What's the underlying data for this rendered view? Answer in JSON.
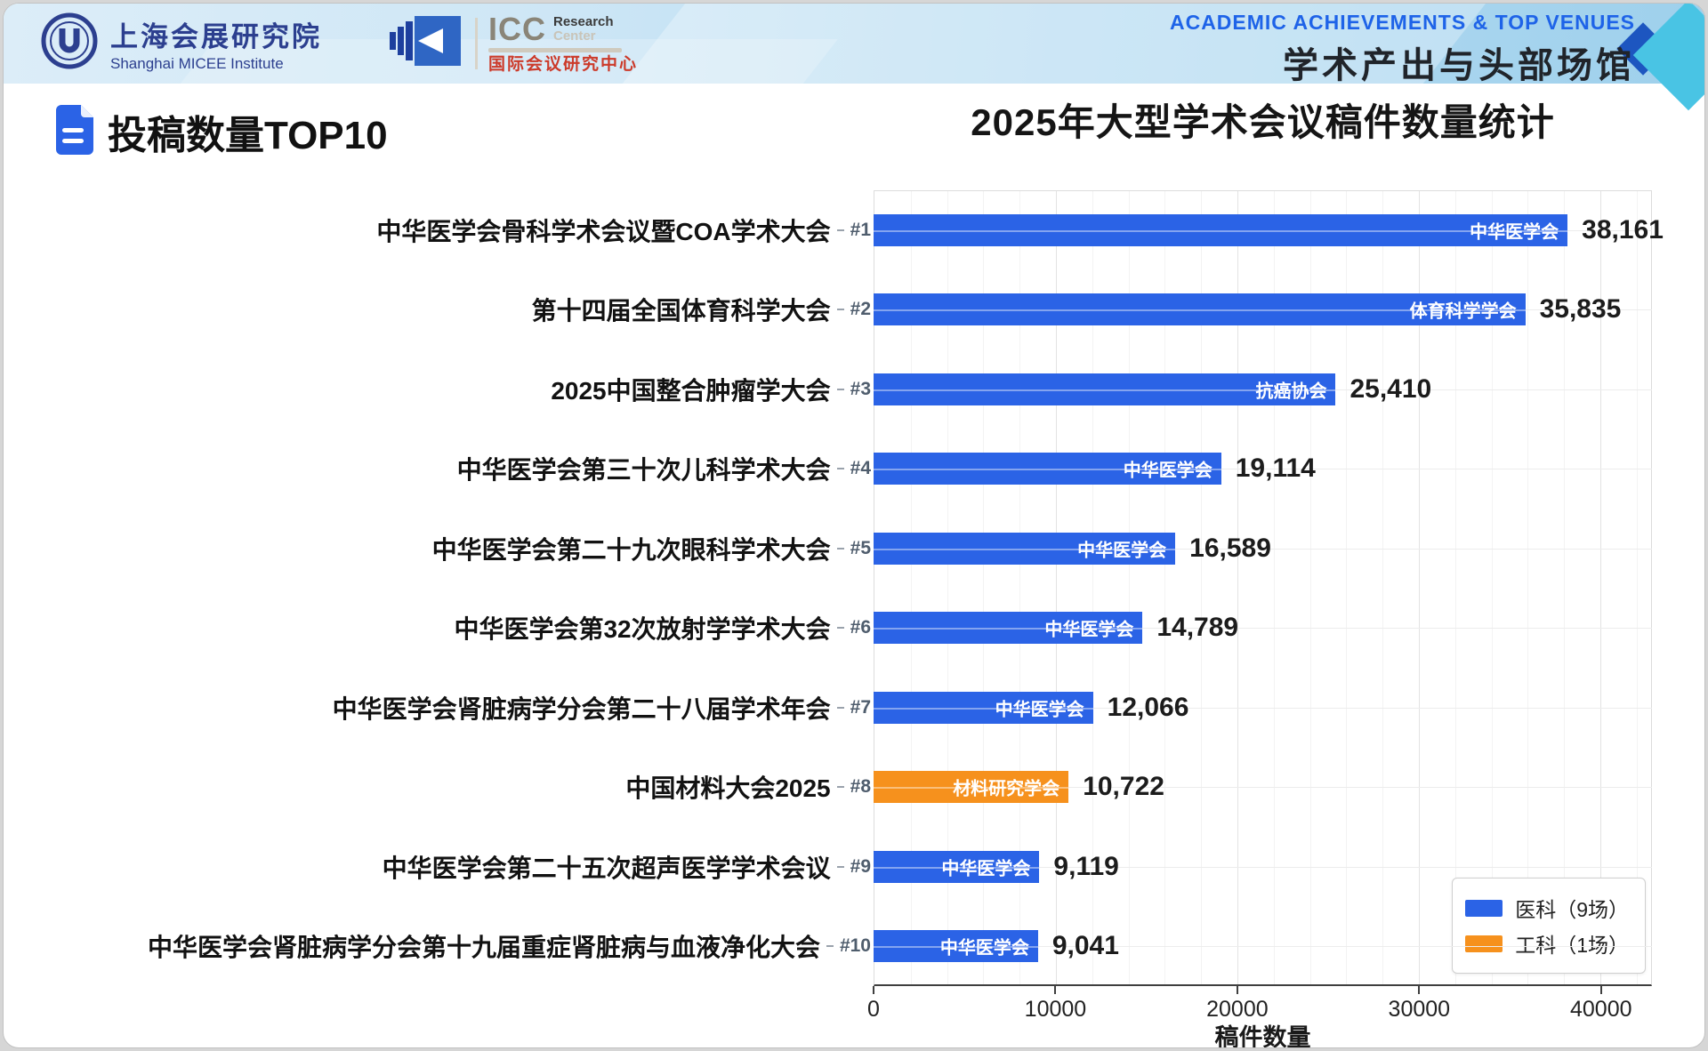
{
  "header": {
    "micee_cn": "上海会展研究院",
    "micee_en": "Shanghai MICEE Institute",
    "icc_name": "ICC",
    "icc_sub1": "Research",
    "icc_sub2": "Center",
    "icc_cn": "国际会议研究中心",
    "right_en": "ACADEMIC ACHIEVEMENTS & TOP VENUES",
    "right_cn": "学术产出与头部场馆"
  },
  "section": {
    "title": "投稿数量TOP10"
  },
  "chart_data": {
    "type": "bar",
    "orientation": "horizontal",
    "title": "2025年大型学术会议稿件数量统计",
    "xlabel": "稿件数量",
    "xlim": [
      0,
      42800
    ],
    "grid": true,
    "x_ticks": [
      {
        "value": 0,
        "label": "0"
      },
      {
        "value": 10000,
        "label": "10000"
      },
      {
        "value": 20000,
        "label": "20000"
      },
      {
        "value": 30000,
        "label": "30000"
      },
      {
        "value": 40000,
        "label": "40000"
      }
    ],
    "rows": [
      {
        "rank": "#1",
        "name": "中华医学会骨科学术会议暨COA学术大会",
        "org": "中华医学会",
        "value": 38161,
        "value_label": "38,161",
        "category": "医科",
        "color": "#2b63e6"
      },
      {
        "rank": "#2",
        "name": "第十四届全国体育科学大会",
        "org": "体育科学学会",
        "value": 35835,
        "value_label": "35,835",
        "category": "医科",
        "color": "#2b63e6"
      },
      {
        "rank": "#3",
        "name": "2025中国整合肿瘤学大会",
        "org": "抗癌协会",
        "value": 25410,
        "value_label": "25,410",
        "category": "医科",
        "color": "#2b63e6"
      },
      {
        "rank": "#4",
        "name": "中华医学会第三十次儿科学术大会",
        "org": "中华医学会",
        "value": 19114,
        "value_label": "19,114",
        "category": "医科",
        "color": "#2b63e6"
      },
      {
        "rank": "#5",
        "name": "中华医学会第二十九次眼科学术大会",
        "org": "中华医学会",
        "value": 16589,
        "value_label": "16,589",
        "category": "医科",
        "color": "#2b63e6"
      },
      {
        "rank": "#6",
        "name": "中华医学会第32次放射学学术大会",
        "org": "中华医学会",
        "value": 14789,
        "value_label": "14,789",
        "category": "医科",
        "color": "#2b63e6"
      },
      {
        "rank": "#7",
        "name": "中华医学会肾脏病学分会第二十八届学术年会",
        "org": "中华医学会",
        "value": 12066,
        "value_label": "12,066",
        "category": "医科",
        "color": "#2b63e6"
      },
      {
        "rank": "#8",
        "name": "中国材料大会2025",
        "org": "材料研究学会",
        "value": 10722,
        "value_label": "10,722",
        "category": "工科",
        "color": "#f6911d"
      },
      {
        "rank": "#9",
        "name": "中华医学会第二十五次超声医学学术会议",
        "org": "中华医学会",
        "value": 9119,
        "value_label": "9,119",
        "category": "医科",
        "color": "#2b63e6"
      },
      {
        "rank": "#10",
        "name": "中华医学会肾脏病学分会第十九届重症肾脏病与血液净化大会",
        "org": "中华医学会",
        "value": 9041,
        "value_label": "9,041",
        "category": "医科",
        "color": "#2b63e6"
      }
    ],
    "legend": {
      "position": "lower right",
      "items": [
        {
          "label": "医科（9场）",
          "color": "#2b63e6"
        },
        {
          "label": "工科（1场）",
          "color": "#f6911d"
        }
      ]
    }
  },
  "colors": {
    "bar_medical": "#2b63e6",
    "bar_engineering": "#f6911d",
    "header_accent_blue": "#1e63e8",
    "icc_red": "#cc3a2a",
    "micee_navy": "#2c3f8f"
  }
}
